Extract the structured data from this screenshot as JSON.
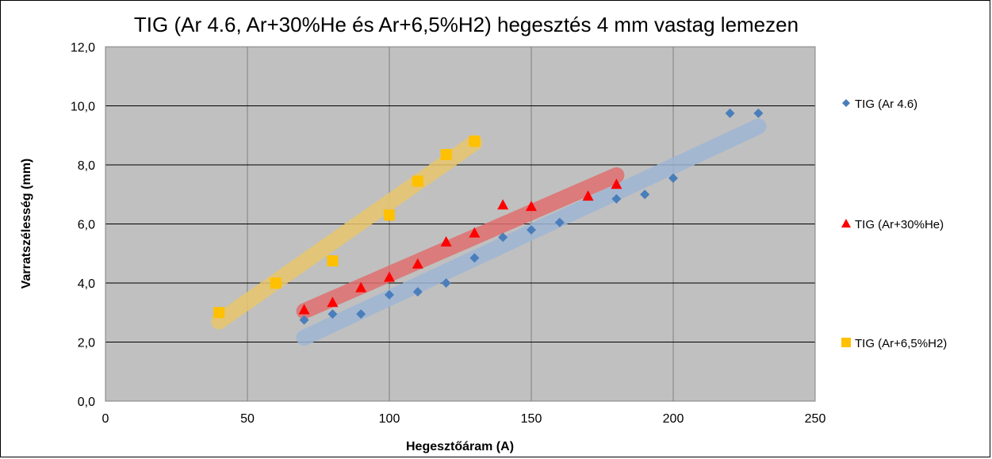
{
  "chart_data": {
    "type": "scatter",
    "title": "TIG (Ar 4.6, Ar+30%He és Ar+6,5%H2) hegesztés 4 mm vastag lemezen",
    "xlabel": "Hegesztőáram (A)",
    "ylabel": "Varratszélesség (mm)",
    "xlim": [
      0,
      250
    ],
    "ylim": [
      0,
      12
    ],
    "x_ticks": [
      "0",
      "50",
      "100",
      "150",
      "200",
      "250"
    ],
    "y_ticks": [
      "0,0",
      "2,0",
      "4,0",
      "6,0",
      "8,0",
      "10,0",
      "12,0"
    ],
    "grid": true,
    "plot_background": "#c0c0c0",
    "legend_position": "right",
    "series": [
      {
        "name": "TIG (Ar 4.6)",
        "marker": "diamond",
        "color": "#4a7ebb",
        "trend_color": "#9fb6d4",
        "x": [
          70,
          80,
          90,
          100,
          110,
          120,
          130,
          140,
          150,
          160,
          180,
          190,
          200,
          220,
          230
        ],
        "y": [
          2.75,
          2.95,
          2.95,
          3.6,
          3.7,
          4.0,
          4.85,
          5.55,
          5.8,
          6.05,
          6.85,
          7.0,
          7.55,
          9.75,
          9.75
        ],
        "trend": [
          [
            70,
            2.15
          ],
          [
            230,
            9.3
          ]
        ]
      },
      {
        "name": "TIG (Ar+30%He)",
        "marker": "triangle",
        "color": "#ff0000",
        "trend_color": "#e07070",
        "x": [
          70,
          80,
          90,
          100,
          110,
          120,
          130,
          140,
          150,
          170,
          180
        ],
        "y": [
          3.1,
          3.35,
          3.85,
          4.2,
          4.65,
          5.4,
          5.7,
          6.65,
          6.6,
          6.95,
          7.35
        ],
        "trend": [
          [
            70,
            3.05
          ],
          [
            180,
            7.65
          ]
        ]
      },
      {
        "name": "TIG (Ar+6,5%H2)",
        "marker": "square",
        "color": "#ffc000",
        "trend_color": "#e8c66c",
        "x": [
          40,
          60,
          80,
          100,
          110,
          120,
          130
        ],
        "y": [
          3.0,
          4.0,
          4.75,
          6.3,
          7.45,
          8.35,
          8.8
        ],
        "trend": [
          [
            40,
            2.7
          ],
          [
            130,
            8.75
          ]
        ]
      }
    ]
  }
}
